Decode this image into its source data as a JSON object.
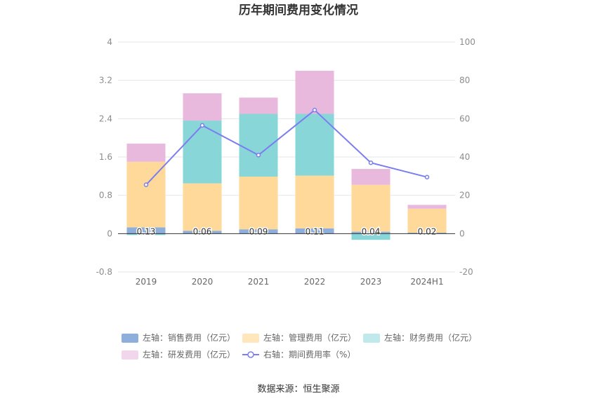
{
  "chart_data": {
    "type": "bar",
    "title": "历年期间费用变化情况",
    "categories": [
      "2019",
      "2020",
      "2021",
      "2022",
      "2023",
      "2024H1"
    ],
    "left_axis": {
      "ticks": [
        "-0.8",
        "0",
        "0.8",
        "1.6",
        "2.4",
        "3.2",
        "4"
      ],
      "ylim": [
        -0.8,
        4
      ]
    },
    "right_axis": {
      "ticks": [
        "-20",
        "0",
        "20",
        "40",
        "60",
        "80",
        "100"
      ],
      "ylim": [
        -20,
        100
      ]
    },
    "stacked": true,
    "series": [
      {
        "name": "左轴：销售费用（亿元）",
        "type": "bar",
        "axis": "left",
        "color": "#8eaedb",
        "values": [
          0.13,
          0.06,
          0.09,
          0.11,
          0.04,
          0.02
        ]
      },
      {
        "name": "左轴：管理费用（亿元）",
        "type": "bar",
        "axis": "left",
        "color": "#ffd99a",
        "values": [
          1.37,
          0.99,
          1.1,
          1.1,
          0.98,
          0.5
        ]
      },
      {
        "name": "左轴：财务费用（亿元）",
        "type": "bar",
        "axis": "left",
        "color": "#88d6d8",
        "values": [
          -0.03,
          1.31,
          1.31,
          1.29,
          -0.13,
          0.0
        ]
      },
      {
        "name": "左轴：研发费用（亿元）",
        "type": "bar",
        "axis": "left",
        "color": "#e8b9dc",
        "values": [
          0.38,
          0.57,
          0.34,
          0.9,
          0.33,
          0.08
        ]
      },
      {
        "name": "右轴：期间费用率（%）",
        "type": "line",
        "axis": "right",
        "color": "#7b7ef0",
        "values": [
          25.5,
          56.5,
          41.0,
          64.5,
          37.0,
          29.5
        ]
      }
    ],
    "data_labels": [
      "0.13",
      "0.06",
      "0.09",
      "0.11",
      "0.04",
      "0.02"
    ],
    "grid": true,
    "legend_position": "bottom"
  },
  "legend_colors": [
    "#8eaedb",
    "#ffe6bd",
    "#bfe9ea",
    "#f2d6ec",
    "#7b7ef0"
  ],
  "source": "数据来源：恒生聚源"
}
